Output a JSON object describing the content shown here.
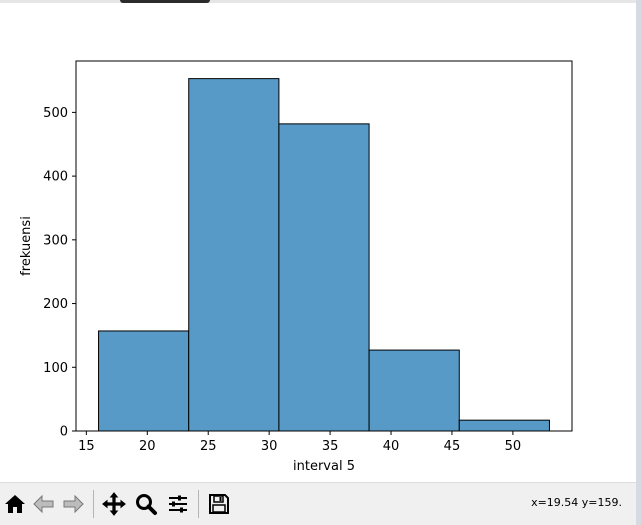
{
  "window": {
    "coords_readout": "x=19.54 y=159."
  },
  "toolbar": {
    "buttons": [
      {
        "name": "home-button",
        "icon": "home-icon",
        "enabled": true
      },
      {
        "name": "back-button",
        "icon": "arrow-left-icon",
        "enabled": false
      },
      {
        "name": "forward-button",
        "icon": "arrow-right-icon",
        "enabled": false
      },
      {
        "name": "pan-button",
        "icon": "move-icon",
        "enabled": true
      },
      {
        "name": "zoom-button",
        "icon": "magnifier-icon",
        "enabled": true
      },
      {
        "name": "configure-subplots-button",
        "icon": "sliders-icon",
        "enabled": true
      },
      {
        "name": "save-button",
        "icon": "floppy-disk-icon",
        "enabled": true
      }
    ]
  },
  "chart_data": {
    "type": "bar",
    "title": "",
    "xlabel": "interval 5",
    "ylabel": "frekuensi",
    "bin_edges": [
      16,
      23.4,
      30.8,
      38.2,
      45.6,
      53
    ],
    "values": [
      157,
      553,
      482,
      127,
      17
    ],
    "xlim": [
      14.15,
      54.85
    ],
    "ylim": [
      0,
      580.65
    ],
    "xticks": [
      15,
      20,
      25,
      30,
      35,
      40,
      45,
      50
    ],
    "yticks": [
      0,
      100,
      200,
      300,
      400,
      500
    ],
    "grid": false,
    "bar_color": "#5799c7",
    "edge_color": "#000000"
  }
}
